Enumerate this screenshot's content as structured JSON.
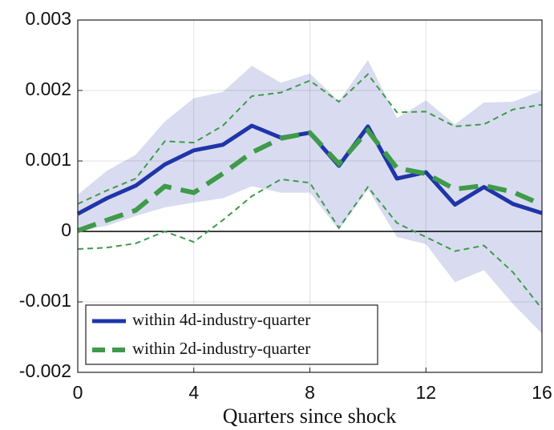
{
  "chart_data": {
    "type": "line",
    "x": [
      0,
      1,
      2,
      3,
      4,
      5,
      6,
      7,
      8,
      9,
      10,
      11,
      12,
      13,
      14,
      15,
      16
    ],
    "xlabel": "Quarters since shock",
    "xlim": [
      0,
      16
    ],
    "xticks": [
      0,
      4,
      8,
      12,
      16
    ],
    "ylim": [
      -0.002,
      0.003
    ],
    "yticks": [
      -0.002,
      -0.001,
      0,
      0.001,
      0.002,
      0.003
    ],
    "grid": true,
    "legend": "lower left",
    "band": {
      "color": "#d9dcf0",
      "upper": [
        0.00052,
        0.00086,
        0.00109,
        0.00156,
        0.00189,
        0.00198,
        0.00235,
        0.00211,
        0.00224,
        0.00185,
        0.00243,
        0.00161,
        0.00186,
        0.00152,
        0.00183,
        0.00184,
        0.002
      ],
      "lower": [
        0.0,
        8e-05,
        0.00022,
        0.00034,
        0.00041,
        0.00047,
        0.00064,
        0.00055,
        0.00055,
        2e-05,
        0.0006,
        -8e-05,
        -0.00018,
        -0.00072,
        -0.00055,
        -0.00103,
        -0.00145
      ]
    },
    "bounds": {
      "color": "#3f9a4a",
      "upper": [
        0.00039,
        0.00058,
        0.00075,
        0.00128,
        0.00126,
        0.0015,
        0.00192,
        0.00197,
        0.00214,
        0.00184,
        0.00223,
        0.00169,
        0.0017,
        0.00149,
        0.00152,
        0.00173,
        0.0018
      ],
      "lower": [
        -0.00025,
        -0.00023,
        -0.00017,
        0.0,
        -0.00015,
        0.00016,
        0.0005,
        0.00074,
        0.00069,
        5e-05,
        0.00063,
        0.00012,
        -8e-05,
        -0.00028,
        -0.0002,
        -0.00058,
        -0.0011
      ]
    },
    "series": [
      {
        "name": "within 4d-industry-quarter",
        "color": "#1f35a8",
        "values": [
          0.00025,
          0.00047,
          0.00065,
          0.00095,
          0.00115,
          0.00123,
          0.0015,
          0.00133,
          0.0014,
          0.00093,
          0.00149,
          0.00075,
          0.00084,
          0.00038,
          0.00063,
          0.00039,
          0.00026
        ]
      },
      {
        "name": "within 2d-industry-quarter",
        "color": "#3f9a4a",
        "dashed": true,
        "values": [
          1e-05,
          0.00016,
          0.0003,
          0.00064,
          0.00055,
          0.00082,
          0.00112,
          0.00132,
          0.0014,
          0.00096,
          0.00143,
          0.0009,
          0.00082,
          0.0006,
          0.00065,
          0.00056,
          0.00038
        ]
      }
    ]
  }
}
